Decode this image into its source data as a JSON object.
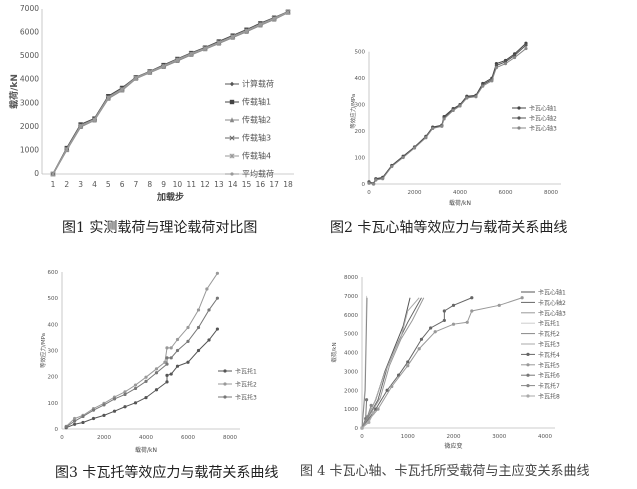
{
  "captions": {
    "fig1": {
      "num": "图1",
      "text": "实测载荷与理论载荷对比图"
    },
    "fig2": {
      "num": "图2",
      "text": "卡瓦心轴等效应力与载荷关系曲线"
    },
    "fig3": {
      "num": "图3",
      "text": "卡瓦托等效应力与载荷关系曲线"
    },
    "fig4": {
      "num": "图 4",
      "text": "卡瓦心轴、卡瓦托所受载荷与主应变关系曲线"
    }
  },
  "chart_data": [
    {
      "type": "line",
      "xlabel": "加载步",
      "ylabel": "载荷/kN",
      "xlim": [
        1,
        18
      ],
      "ylim": [
        0,
        7000
      ],
      "xticks": [
        1,
        2,
        3,
        4,
        5,
        6,
        7,
        8,
        9,
        10,
        11,
        12,
        13,
        14,
        15,
        16,
        17,
        18
      ],
      "yticks": [
        0,
        1000,
        2000,
        3000,
        4000,
        5000,
        6000,
        7000
      ],
      "legend": "right",
      "grid": false,
      "x": [
        1,
        2,
        3,
        4,
        5,
        6,
        7,
        8,
        9,
        10,
        11,
        12,
        13,
        14,
        15,
        16,
        17,
        18
      ],
      "series": [
        {
          "name": "计算载荷",
          "marker": "diamond",
          "color": "#555555",
          "values": [
            0,
            1050,
            2050,
            2300,
            3250,
            3600,
            4080,
            4330,
            4580,
            4850,
            5100,
            5330,
            5580,
            5830,
            6080,
            6350,
            6600,
            6870
          ]
        },
        {
          "name": "传载轴1",
          "marker": "square",
          "color": "#444444",
          "values": [
            0,
            1100,
            2100,
            2350,
            3300,
            3650,
            4100,
            4350,
            4620,
            4880,
            5130,
            5360,
            5620,
            5870,
            6120,
            6390,
            6630,
            6880
          ]
        },
        {
          "name": "传载轴2",
          "marker": "triangle",
          "color": "#888888",
          "values": [
            0,
            1020,
            2000,
            2280,
            3200,
            3550,
            4050,
            4300,
            4550,
            4800,
            5060,
            5300,
            5540,
            5790,
            6040,
            6310,
            6560,
            6850
          ]
        },
        {
          "name": "传载轴3",
          "marker": "x",
          "color": "#666666",
          "values": [
            0,
            1060,
            2060,
            2320,
            3260,
            3610,
            4090,
            4340,
            4590,
            4860,
            5110,
            5340,
            5590,
            5840,
            6090,
            6360,
            6610,
            6870
          ]
        },
        {
          "name": "传载轴4",
          "marker": "star",
          "color": "#999999",
          "values": [
            0,
            1040,
            2030,
            2300,
            3230,
            3580,
            4070,
            4320,
            4570,
            4840,
            5090,
            5320,
            5570,
            5820,
            6070,
            6340,
            6590,
            6860
          ]
        },
        {
          "name": "平均载荷",
          "marker": "circle",
          "color": "#9a9a9a",
          "values": [
            0,
            1050,
            2050,
            2310,
            3250,
            3600,
            4080,
            4330,
            4580,
            4850,
            5100,
            5330,
            5580,
            5830,
            6080,
            6350,
            6600,
            6870
          ]
        }
      ]
    },
    {
      "type": "line",
      "xlabel": "载荷/kN",
      "ylabel": "等效应力/MPa",
      "xlim": [
        0,
        8000
      ],
      "ylim": [
        0,
        550
      ],
      "xticks": [
        0,
        2000,
        4000,
        6000,
        8000
      ],
      "yticks": [
        0,
        100,
        200,
        300,
        400,
        500
      ],
      "legend": "right",
      "grid": false,
      "series": [
        {
          "name": "卡瓦心轴1",
          "color": "#444444",
          "points": [
            [
              0,
              8
            ],
            [
              200,
              2
            ],
            [
              300,
              20
            ],
            [
              600,
              25
            ],
            [
              1000,
              70
            ],
            [
              1500,
              105
            ],
            [
              2000,
              140
            ],
            [
              2500,
              180
            ],
            [
              2800,
              215
            ],
            [
              3200,
              222
            ],
            [
              3300,
              255
            ],
            [
              3700,
              285
            ],
            [
              4000,
              300
            ],
            [
              4300,
              332
            ],
            [
              4700,
              335
            ],
            [
              5000,
              380
            ],
            [
              5400,
              400
            ],
            [
              5600,
              455
            ],
            [
              6000,
              467
            ],
            [
              6400,
              492
            ],
            [
              6900,
              532
            ]
          ]
        },
        {
          "name": "卡瓦心轴2",
          "color": "#555555",
          "points": [
            [
              0,
              5
            ],
            [
              200,
              0
            ],
            [
              300,
              18
            ],
            [
              600,
              22
            ],
            [
              1000,
              68
            ],
            [
              1500,
              102
            ],
            [
              2000,
              138
            ],
            [
              2500,
              178
            ],
            [
              2800,
              212
            ],
            [
              3200,
              220
            ],
            [
              3300,
              250
            ],
            [
              3700,
              282
            ],
            [
              4000,
              298
            ],
            [
              4300,
              328
            ],
            [
              4700,
              332
            ],
            [
              5000,
              375
            ],
            [
              5400,
              395
            ],
            [
              5600,
              448
            ],
            [
              6000,
              462
            ],
            [
              6400,
              486
            ],
            [
              6900,
              525
            ]
          ]
        },
        {
          "name": "卡瓦心轴3",
          "color": "#888888",
          "points": [
            [
              0,
              3
            ],
            [
              200,
              0
            ],
            [
              300,
              15
            ],
            [
              600,
              20
            ],
            [
              1000,
              66
            ],
            [
              1500,
              100
            ],
            [
              2000,
              136
            ],
            [
              2500,
              175
            ],
            [
              2800,
              210
            ],
            [
              3200,
              218
            ],
            [
              3300,
              246
            ],
            [
              3700,
              278
            ],
            [
              4000,
              295
            ],
            [
              4300,
              325
            ],
            [
              4700,
              330
            ],
            [
              5000,
              370
            ],
            [
              5400,
              390
            ],
            [
              5600,
              440
            ],
            [
              6000,
              455
            ],
            [
              6400,
              478
            ],
            [
              6900,
              512
            ]
          ]
        }
      ]
    },
    {
      "type": "line",
      "xlabel": "载荷/kN",
      "ylabel": "等效应力/MPa",
      "xlim": [
        0,
        8000
      ],
      "ylim": [
        0,
        600
      ],
      "xticks": [
        0,
        2000,
        4000,
        6000,
        8000
      ],
      "yticks": [
        0,
        100,
        200,
        300,
        400,
        500,
        600
      ],
      "legend": "right",
      "grid": false,
      "series": [
        {
          "name": "卡瓦托1",
          "color": "#555555",
          "points": [
            [
              200,
              5
            ],
            [
              600,
              18
            ],
            [
              1000,
              25
            ],
            [
              1500,
              40
            ],
            [
              2000,
              52
            ],
            [
              2500,
              68
            ],
            [
              3000,
              85
            ],
            [
              3500,
              100
            ],
            [
              4000,
              120
            ],
            [
              4500,
              150
            ],
            [
              5000,
              180
            ],
            [
              5000,
              205
            ],
            [
              5200,
              210
            ],
            [
              5500,
              240
            ],
            [
              6000,
              255
            ],
            [
              6500,
              300
            ],
            [
              7000,
              340
            ],
            [
              7400,
              382
            ]
          ]
        },
        {
          "name": "卡瓦托2",
          "color": "#999999",
          "points": [
            [
              200,
              10
            ],
            [
              600,
              40
            ],
            [
              1000,
              52
            ],
            [
              1500,
              78
            ],
            [
              2000,
              98
            ],
            [
              2500,
              122
            ],
            [
              3000,
              142
            ],
            [
              3500,
              168
            ],
            [
              4000,
              198
            ],
            [
              4500,
              230
            ],
            [
              4900,
              255
            ],
            [
              5000,
              310
            ],
            [
              5200,
              310
            ],
            [
              5500,
              342
            ],
            [
              6000,
              388
            ],
            [
              6500,
              455
            ],
            [
              6900,
              535
            ],
            [
              7400,
              595
            ]
          ]
        },
        {
          "name": "卡瓦托3",
          "color": "#777777",
          "points": [
            [
              200,
              8
            ],
            [
              600,
              30
            ],
            [
              1000,
              48
            ],
            [
              1500,
              72
            ],
            [
              2000,
              92
            ],
            [
              2500,
              115
            ],
            [
              3000,
              132
            ],
            [
              3500,
              155
            ],
            [
              4000,
              182
            ],
            [
              4500,
              215
            ],
            [
              5000,
              248
            ],
            [
              5000,
              272
            ],
            [
              5200,
              272
            ],
            [
              5500,
              300
            ],
            [
              6000,
              335
            ],
            [
              6500,
              388
            ],
            [
              7000,
              455
            ],
            [
              7400,
              500
            ]
          ]
        }
      ]
    },
    {
      "type": "line",
      "xlabel": "微应变",
      "ylabel": "载荷/kN",
      "xlim": [
        0,
        4000
      ],
      "ylim": [
        0,
        8000
      ],
      "xticks": [
        0,
        1000,
        2000,
        3000,
        4000
      ],
      "yticks": [
        0,
        1000,
        2000,
        3000,
        4000,
        5000,
        6000,
        7000,
        8000
      ],
      "legend": "right",
      "grid": false,
      "series": [
        {
          "name": "卡瓦心轴1",
          "color": "#555555",
          "points": [
            [
              0,
              0
            ],
            [
              300,
              1500
            ],
            [
              500,
              3000
            ],
            [
              700,
              4200
            ],
            [
              900,
              5400
            ],
            [
              1050,
              6900
            ]
          ]
        },
        {
          "name": "卡瓦心轴2",
          "color": "#666666",
          "points": [
            [
              0,
              0
            ],
            [
              350,
              1500
            ],
            [
              550,
              3200
            ],
            [
              800,
              4600
            ],
            [
              1000,
              5600
            ],
            [
              1300,
              6900
            ]
          ]
        },
        {
          "name": "卡瓦心轴3",
          "color": "#999999",
          "points": [
            [
              0,
              0
            ],
            [
              400,
              1600
            ],
            [
              600,
              3300
            ],
            [
              850,
              4700
            ],
            [
              1100,
              5700
            ],
            [
              1350,
              6900
            ]
          ]
        },
        {
          "name": "卡瓦托1",
          "color": "#cccccc",
          "points": [
            [
              0,
              0
            ],
            [
              60,
              2000
            ],
            [
              80,
              4000
            ],
            [
              100,
              7000
            ]
          ]
        },
        {
          "name": "卡瓦托2",
          "color": "#888888",
          "points": [
            [
              0,
              0
            ],
            [
              70,
              2000
            ],
            [
              90,
              4500
            ],
            [
              110,
              6900
            ]
          ]
        },
        {
          "name": "卡瓦托3",
          "color": "#aaaaaa",
          "points": [
            [
              0,
              0
            ],
            [
              280,
              1400
            ],
            [
              480,
              2800
            ],
            [
              650,
              3800
            ],
            [
              850,
              4800
            ],
            [
              1000,
              6200
            ],
            [
              1250,
              6900
            ]
          ]
        },
        {
          "name": "卡瓦托4",
          "color": "#666666",
          "points": [
            [
              0,
              0
            ],
            [
              300,
              1000
            ],
            [
              550,
              2000
            ],
            [
              800,
              2800
            ],
            [
              1000,
              3500
            ],
            [
              1300,
              4700
            ],
            [
              1500,
              5300
            ],
            [
              1800,
              5700
            ],
            [
              1800,
              6200
            ],
            [
              2000,
              6500
            ],
            [
              2400,
              6900
            ]
          ]
        },
        {
          "name": "卡瓦托5",
          "color": "#999999",
          "points": [
            [
              0,
              0
            ],
            [
              350,
              1000
            ],
            [
              650,
              2200
            ],
            [
              1000,
              3300
            ],
            [
              1250,
              4200
            ],
            [
              1600,
              5100
            ],
            [
              2000,
              5500
            ],
            [
              2300,
              5600
            ],
            [
              2400,
              6200
            ],
            [
              3000,
              6500
            ],
            [
              3500,
              6900
            ]
          ]
        },
        {
          "name": "卡瓦托6",
          "color": "#777777",
          "points": [
            [
              0,
              0
            ],
            [
              80,
              500
            ],
            [
              100,
              1500
            ]
          ]
        },
        {
          "name": "卡瓦托7",
          "color": "#888888",
          "points": [
            [
              0,
              0
            ],
            [
              120,
              600
            ],
            [
              200,
              1200
            ]
          ]
        },
        {
          "name": "卡瓦托8",
          "color": "#aaaaaa",
          "points": [
            [
              0,
              0
            ],
            [
              150,
              300
            ],
            [
              250,
              800
            ]
          ]
        }
      ]
    }
  ]
}
